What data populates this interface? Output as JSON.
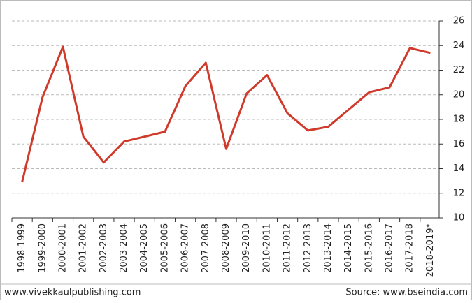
{
  "chart_data": {
    "type": "line",
    "categories": [
      "1998-1999",
      "1999-2000",
      "2000-2001",
      "2001-2002",
      "2002-2003",
      "2003-2004",
      "2004-2005",
      "2005-2006",
      "2006-2007",
      "2007-2008",
      "2008-2009",
      "2009-2010",
      "2010-2011",
      "2011-2012",
      "2012-2013",
      "2013-2014",
      "2014-2015",
      "2015-2016",
      "2016-2017",
      "2017-2018",
      "2018-2019*"
    ],
    "values": [
      12.9,
      19.8,
      23.9,
      16.6,
      14.5,
      16.2,
      16.6,
      17.0,
      20.7,
      22.6,
      15.6,
      20.1,
      21.6,
      18.5,
      17.1,
      17.4,
      18.8,
      20.2,
      20.6,
      23.8,
      23.4
    ],
    "color": "#d03a2b",
    "ylim": [
      10,
      26
    ],
    "yticks": [
      10,
      12,
      14,
      16,
      18,
      20,
      22,
      24,
      26
    ],
    "grid": true,
    "y_axis_side": "right"
  },
  "footer": {
    "left": "www.vivekkaulpublishing.com",
    "right": "Source: www.bseindia.com"
  }
}
